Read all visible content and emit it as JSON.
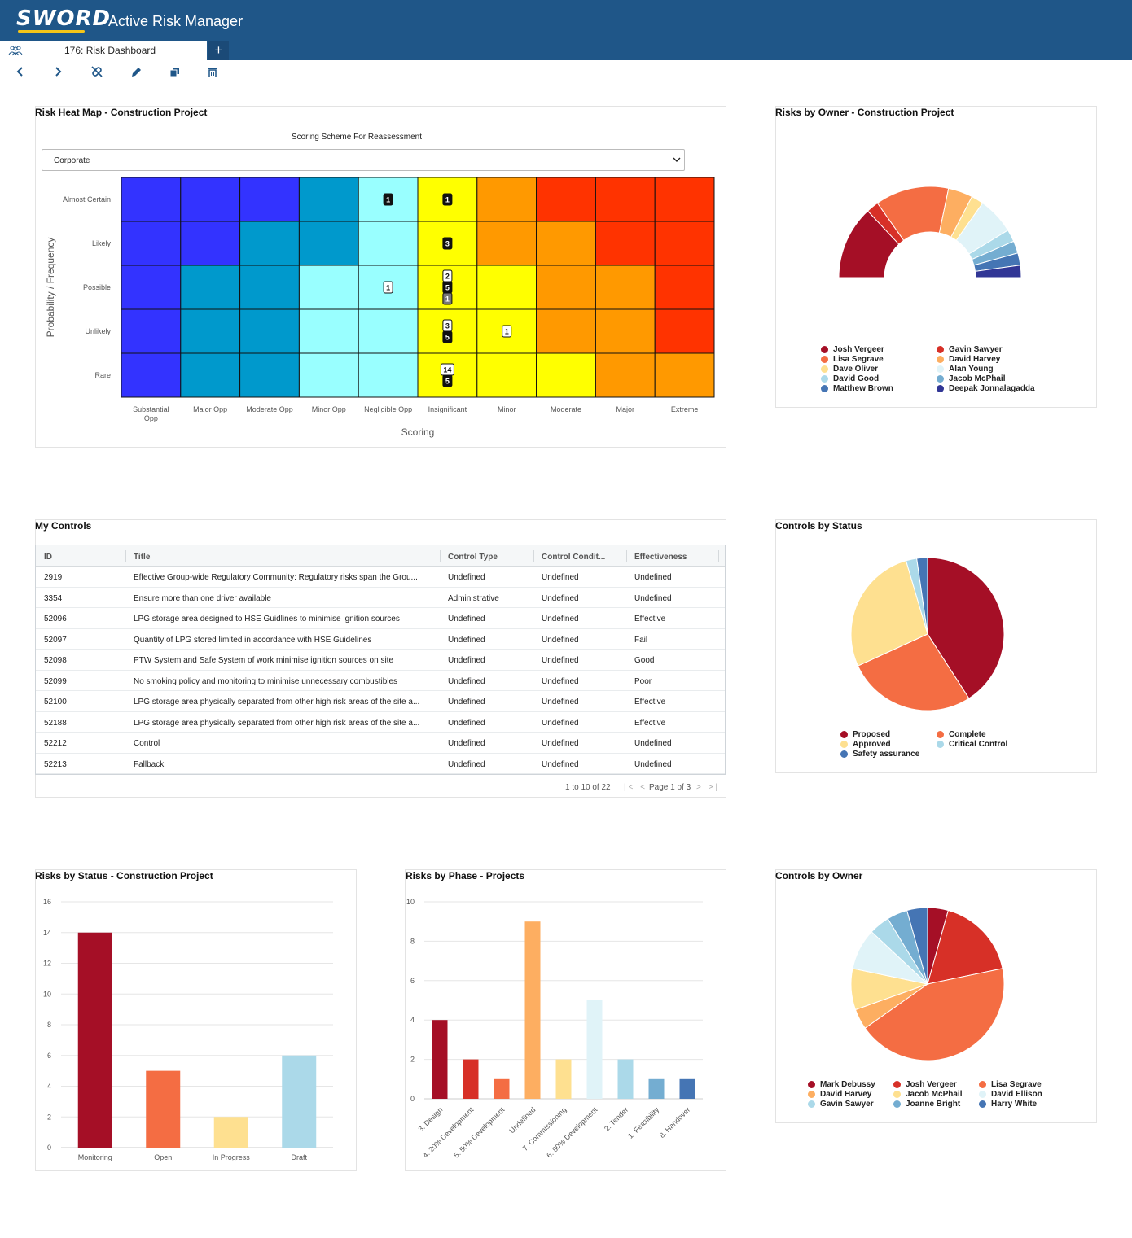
{
  "app": {
    "logo": "SWORD",
    "title": "Active Risk Manager"
  },
  "tabs": [
    {
      "label": "176: Risk Dashboard"
    }
  ],
  "toolbar": {
    "buttons": [
      "back-icon",
      "forward-icon",
      "unlink-icon",
      "edit-icon",
      "copy-icon",
      "delete-icon"
    ]
  },
  "heatmap": {
    "title": "Risk Heat Map - Construction Project",
    "scheme_label": "Scoring Scheme For Reassessment",
    "scheme_value": "Corporate",
    "ylabel": "Probability / Frequency",
    "xlabel": "Scoring",
    "rows": [
      "Almost Certain",
      "Likely",
      "Possible",
      "Unlikely",
      "Rare"
    ],
    "cols": [
      "Substantial Opp",
      "Major Opp",
      "Moderate Opp",
      "Minor Opp",
      "Negligible Opp",
      "Insignificant",
      "Minor",
      "Moderate",
      "Major",
      "Extreme"
    ],
    "colors": [
      [
        "#3333ff",
        "#3333ff",
        "#3333ff",
        "#0099cc",
        "#99ffff",
        "#ffff00",
        "#ff9900",
        "#ff3300",
        "#ff3300",
        "#ff3300"
      ],
      [
        "#3333ff",
        "#3333ff",
        "#0099cc",
        "#0099cc",
        "#99ffff",
        "#ffff00",
        "#ff9900",
        "#ff9900",
        "#ff3300",
        "#ff3300"
      ],
      [
        "#3333ff",
        "#0099cc",
        "#0099cc",
        "#99ffff",
        "#99ffff",
        "#ffff00",
        "#ffff00",
        "#ff9900",
        "#ff9900",
        "#ff3300"
      ],
      [
        "#3333ff",
        "#0099cc",
        "#0099cc",
        "#99ffff",
        "#99ffff",
        "#ffff00",
        "#ffff00",
        "#ff9900",
        "#ff9900",
        "#ff3300"
      ],
      [
        "#3333ff",
        "#0099cc",
        "#0099cc",
        "#99ffff",
        "#99ffff",
        "#ffff00",
        "#ffff00",
        "#ffff00",
        "#ff9900",
        "#ff9900"
      ]
    ],
    "badges": [
      {
        "row": 0,
        "col": 4,
        "items": [
          {
            "v": "1",
            "style": "dark"
          }
        ]
      },
      {
        "row": 0,
        "col": 5,
        "items": [
          {
            "v": "1",
            "style": "dark"
          }
        ]
      },
      {
        "row": 1,
        "col": 5,
        "items": [
          {
            "v": "3",
            "style": "dark"
          }
        ]
      },
      {
        "row": 2,
        "col": 4,
        "items": [
          {
            "v": "1",
            "style": "light"
          }
        ]
      },
      {
        "row": 2,
        "col": 5,
        "items": [
          {
            "v": "2",
            "style": "light"
          },
          {
            "v": "5",
            "style": "dark"
          },
          {
            "v": "1",
            "style": "grey"
          }
        ]
      },
      {
        "row": 3,
        "col": 5,
        "items": [
          {
            "v": "3",
            "style": "light"
          },
          {
            "v": "5",
            "style": "dark"
          }
        ]
      },
      {
        "row": 3,
        "col": 6,
        "items": [
          {
            "v": "1",
            "style": "light"
          }
        ]
      },
      {
        "row": 4,
        "col": 5,
        "items": [
          {
            "v": "14",
            "style": "light"
          },
          {
            "v": "5",
            "style": "dark"
          }
        ]
      }
    ]
  },
  "risks_by_owner": {
    "title": "Risks by Owner - Construction Project",
    "chart_data": {
      "type": "pie",
      "variant": "semi-donut",
      "series": [
        {
          "name": "Josh Vergeer",
          "value": 6,
          "color": "#a50f26"
        },
        {
          "name": "Gavin Sawyer",
          "value": 1,
          "color": "#d73027"
        },
        {
          "name": "Lisa Segrave",
          "value": 6,
          "color": "#f46d43"
        },
        {
          "name": "David Harvey",
          "value": 2,
          "color": "#fdae61"
        },
        {
          "name": "Dave Oliver",
          "value": 1,
          "color": "#fee090"
        },
        {
          "name": "Alan Young",
          "value": 3,
          "color": "#e0f3f8"
        },
        {
          "name": "David Good",
          "value": 1,
          "color": "#abd9e9"
        },
        {
          "name": "Jacob McPhail",
          "value": 1,
          "color": "#74add1"
        },
        {
          "name": "Matthew Brown",
          "value": 1,
          "color": "#4575b4"
        },
        {
          "name": "Deepak Jonnalagadda",
          "value": 1,
          "color": "#313695"
        }
      ],
      "legend": "bottom"
    }
  },
  "my_controls": {
    "title": "My Controls",
    "columns": [
      "ID",
      "Title",
      "Control Type",
      "Control Condit...",
      "Effectiveness"
    ],
    "rows": [
      [
        "2919",
        "Effective Group-wide Regulatory Community: Regulatory risks span the Grou...",
        "Undefined",
        "Undefined",
        "Undefined"
      ],
      [
        "3354",
        "Ensure more than one driver available",
        "Administrative",
        "Undefined",
        "Undefined"
      ],
      [
        "52096",
        "LPG storage area designed to HSE Guidlines to minimise ignition sources",
        "Undefined",
        "Undefined",
        "Effective"
      ],
      [
        "52097",
        "Quantity of LPG stored limited in accordance with HSE Guidelines",
        "Undefined",
        "Undefined",
        "Fail"
      ],
      [
        "52098",
        "PTW System and Safe System of work minimise ignition sources on site",
        "Undefined",
        "Undefined",
        "Good"
      ],
      [
        "52099",
        "No smoking policy and monitoring to minimise unnecessary combustibles",
        "Undefined",
        "Undefined",
        "Poor"
      ],
      [
        "52100",
        "LPG storage area physically separated from other high risk areas of the site a...",
        "Undefined",
        "Undefined",
        "Effective"
      ],
      [
        "52188",
        "LPG storage area physically separated from other high risk areas of the site a...",
        "Undefined",
        "Undefined",
        "Effective"
      ],
      [
        "52212",
        "Control",
        "Undefined",
        "Undefined",
        "Undefined"
      ],
      [
        "52213",
        "Fallback",
        "Undefined",
        "Undefined",
        "Undefined"
      ]
    ],
    "pager": {
      "range": "1 to 10 of 22",
      "page": "Page 1 of 3"
    }
  },
  "controls_by_status": {
    "title": "Controls by Status",
    "chart_data": {
      "type": "pie",
      "series": [
        {
          "name": "Proposed",
          "value": 9,
          "color": "#a50f26"
        },
        {
          "name": "Complete",
          "value": 6,
          "color": "#f46d43"
        },
        {
          "name": "Approved",
          "value": 6,
          "color": "#fee090"
        },
        {
          "name": "Critical Control",
          "value": 0.5,
          "color": "#abd9e9"
        },
        {
          "name": "Safety assurance",
          "value": 0.5,
          "color": "#4575b4"
        }
      ],
      "legend": "bottom"
    }
  },
  "risks_by_status": {
    "title": "Risks by Status - Construction Project",
    "chart_data": {
      "type": "bar",
      "categories": [
        "Monitoring",
        "Open",
        "In Progress",
        "Draft"
      ],
      "values": [
        14,
        5,
        2,
        6
      ],
      "colors": [
        "#a50f26",
        "#f46d43",
        "#fee090",
        "#abd9e9"
      ],
      "ylim": [
        0,
        16
      ],
      "yticks": [
        0,
        2,
        4,
        6,
        8,
        10,
        12,
        14,
        16
      ]
    }
  },
  "risks_by_phase": {
    "title": "Risks by Phase - Projects",
    "chart_data": {
      "type": "bar",
      "categories": [
        "3. Design",
        "4. 20% Development",
        "5. 50% Development",
        "Undefined",
        "7. Commissioning",
        "6. 80% Development",
        "2. Tender",
        "1. Feasibility",
        "8. Handover"
      ],
      "values": [
        4,
        2,
        1,
        9,
        2,
        5,
        2,
        1,
        1
      ],
      "colors": [
        "#a50f26",
        "#d73027",
        "#f46d43",
        "#fdae61",
        "#fee090",
        "#e0f3f8",
        "#abd9e9",
        "#74add1",
        "#4575b4"
      ],
      "ylim": [
        0,
        10
      ],
      "yticks": [
        0,
        2,
        4,
        6,
        8,
        10
      ]
    }
  },
  "controls_by_owner": {
    "title": "Controls by Owner",
    "chart_data": {
      "type": "pie",
      "series": [
        {
          "name": "Mark Debussy",
          "value": 1,
          "color": "#a50f26"
        },
        {
          "name": "Josh Vergeer",
          "value": 4,
          "color": "#d73027"
        },
        {
          "name": "Lisa Segrave",
          "value": 10,
          "color": "#f46d43"
        },
        {
          "name": "David Harvey",
          "value": 1,
          "color": "#fdae61"
        },
        {
          "name": "Jacob McPhail",
          "value": 2,
          "color": "#fee090"
        },
        {
          "name": "David Ellison",
          "value": 2,
          "color": "#e0f3f8"
        },
        {
          "name": "Gavin Sawyer",
          "value": 1,
          "color": "#abd9e9"
        },
        {
          "name": "Joanne Bright",
          "value": 1,
          "color": "#74add1"
        },
        {
          "name": "Harry White",
          "value": 1,
          "color": "#4575b4"
        }
      ],
      "legend": "bottom"
    }
  }
}
